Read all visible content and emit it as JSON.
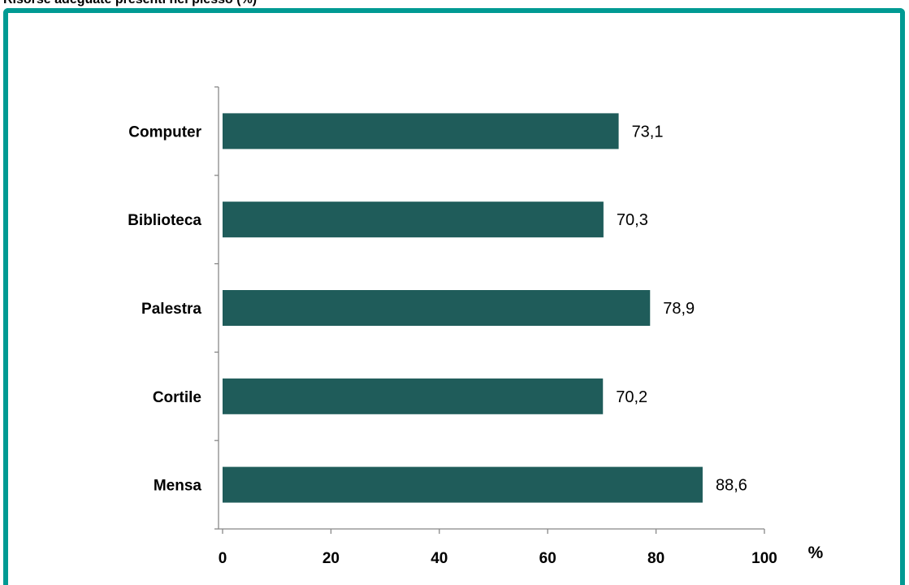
{
  "title": "Risorse adeguate presenti nel plesso (%)",
  "colors": {
    "frame": "#009a93",
    "bar": "#1f5c5a",
    "axis": "#888888"
  },
  "chart_data": {
    "type": "bar",
    "orientation": "horizontal",
    "categories": [
      "Computer",
      "Biblioteca",
      "Palestra",
      "Cortile",
      "Mensa"
    ],
    "values": [
      73.1,
      70.3,
      78.9,
      70.2,
      88.6
    ],
    "value_labels": [
      "73,1",
      "70,3",
      "78,9",
      "70,2",
      "88,6"
    ],
    "xlim": [
      0,
      100
    ],
    "xticks": [
      0,
      20,
      40,
      60,
      80,
      100
    ],
    "xlabel": "%",
    "ylabel": "",
    "grid": false,
    "legend": "none"
  }
}
